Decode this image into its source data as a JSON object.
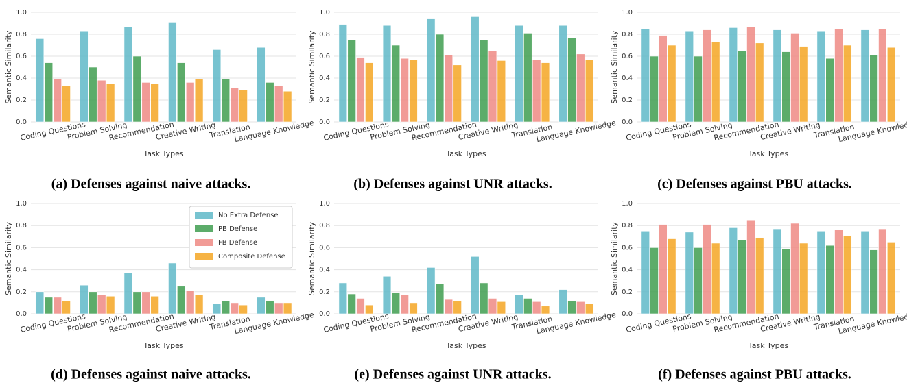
{
  "chart_data": [
    {
      "type": "bar",
      "title": "(a) Defenses against naive attacks.",
      "x_label": "Task Types",
      "y_label": "Semantic Similarity",
      "categories": [
        "Coding Questions",
        "Problem Solving",
        "Recommendation",
        "Creative Writing",
        "Translation",
        "Language Knowledge"
      ],
      "series": [
        {
          "color": "#5fb8c8",
          "values": [
            0.76,
            0.83,
            0.87,
            0.91,
            0.66,
            0.68
          ]
        },
        {
          "color": "#3f9e50",
          "values": [
            0.54,
            0.5,
            0.6,
            0.54,
            0.39,
            0.36
          ]
        },
        {
          "color": "#ef8a84",
          "values": [
            0.39,
            0.38,
            0.36,
            0.36,
            0.31,
            0.33
          ]
        },
        {
          "color": "#f5a623",
          "values": [
            0.33,
            0.35,
            0.35,
            0.39,
            0.29,
            0.28
          ]
        }
      ],
      "ylim": [
        0,
        1
      ],
      "yticks": [
        {
          "value": 0,
          "label": "0.0"
        },
        0.2,
        0.4,
        0.6,
        0.8,
        {
          "value": 1,
          "label": "1.0"
        }
      ],
      "grid": true
    },
    {
      "type": "bar",
      "title": "(b) Defenses against UNR attacks.",
      "x_label": "Task Types",
      "y_label": "Semantic Similarity",
      "categories": [
        "Coding Questions",
        "Problem Solving",
        "Recommendation",
        "Creative Writing",
        "Translation",
        "Language Knowledge"
      ],
      "series": [
        {
          "color": "#5fb8c8",
          "values": [
            0.89,
            0.88,
            0.94,
            0.96,
            0.88,
            0.88
          ]
        },
        {
          "color": "#3f9e50",
          "values": [
            0.75,
            0.7,
            0.8,
            0.75,
            0.81,
            0.77
          ]
        },
        {
          "color": "#ef8a84",
          "values": [
            0.59,
            0.58,
            0.61,
            0.65,
            0.57,
            0.62
          ]
        },
        {
          "color": "#f5a623",
          "values": [
            0.54,
            0.57,
            0.52,
            0.56,
            0.54,
            0.57
          ]
        }
      ],
      "ylim": [
        0,
        1
      ],
      "yticks": [
        {
          "value": 0,
          "label": "0.0"
        },
        0.2,
        0.4,
        0.6,
        0.8,
        {
          "value": 1,
          "label": "1.0"
        }
      ],
      "grid": true
    },
    {
      "type": "bar",
      "title": "(c) Defenses against PBU attacks.",
      "x_label": "Task Types",
      "y_label": "Semantic Similarity",
      "categories": [
        "Coding Questions",
        "Problem Solving",
        "Recommendation",
        "Creative Writing",
        "Translation",
        "Language Knowledge"
      ],
      "series": [
        {
          "color": "#5fb8c8",
          "values": [
            0.85,
            0.83,
            0.86,
            0.84,
            0.83,
            0.84
          ]
        },
        {
          "color": "#3f9e50",
          "values": [
            0.6,
            0.6,
            0.65,
            0.64,
            0.58,
            0.61
          ]
        },
        {
          "color": "#ef8a84",
          "values": [
            0.79,
            0.84,
            0.87,
            0.81,
            0.85,
            0.85
          ]
        },
        {
          "color": "#f5a623",
          "values": [
            0.7,
            0.73,
            0.72,
            0.69,
            0.7,
            0.68
          ]
        }
      ],
      "ylim": [
        0,
        1
      ],
      "yticks": [
        {
          "value": 0,
          "label": "0.0"
        },
        0.2,
        0.4,
        0.6,
        0.8,
        {
          "value": 1,
          "label": "1.0"
        }
      ],
      "grid": true
    },
    {
      "type": "bar",
      "title": "(d) Defenses against naive attacks.",
      "x_label": "Task Types",
      "y_label": "Semantic Similarity",
      "categories": [
        "Coding Questions",
        "Problem Solving",
        "Recommendation",
        "Creative Writing",
        "Translation",
        "Language Knowledge"
      ],
      "series": [
        {
          "name": "No Extra Defense",
          "color": "#5fb8c8",
          "values": [
            0.2,
            0.26,
            0.37,
            0.46,
            0.09,
            0.15
          ]
        },
        {
          "name": "PB Defense",
          "color": "#3f9e50",
          "values": [
            0.15,
            0.2,
            0.2,
            0.25,
            0.12,
            0.12
          ]
        },
        {
          "name": "FB Defense",
          "color": "#ef8a84",
          "values": [
            0.15,
            0.17,
            0.2,
            0.21,
            0.1,
            0.1
          ]
        },
        {
          "name": "Composite Defense",
          "color": "#f5a623",
          "values": [
            0.12,
            0.16,
            0.16,
            0.17,
            0.08,
            0.1
          ]
        }
      ],
      "ylim": [
        0,
        1
      ],
      "yticks": [
        {
          "value": 0,
          "label": "0.0"
        },
        0.2,
        0.4,
        0.6,
        0.8,
        {
          "value": 1,
          "label": "1.0"
        }
      ],
      "grid": true,
      "legend": "upper right"
    },
    {
      "type": "bar",
      "title": "(e) Defenses against UNR attacks.",
      "x_label": "Task Types",
      "y_label": "Semantic Similarity",
      "categories": [
        "Coding Questions",
        "Problem Solving",
        "Recommendation",
        "Creative Writing",
        "Translation",
        "Language Knowledge"
      ],
      "series": [
        {
          "color": "#5fb8c8",
          "values": [
            0.28,
            0.34,
            0.42,
            0.52,
            0.17,
            0.22
          ]
        },
        {
          "color": "#3f9e50",
          "values": [
            0.18,
            0.19,
            0.27,
            0.28,
            0.14,
            0.12
          ]
        },
        {
          "color": "#ef8a84",
          "values": [
            0.14,
            0.17,
            0.13,
            0.14,
            0.11,
            0.11
          ]
        },
        {
          "color": "#f5a623",
          "values": [
            0.08,
            0.1,
            0.12,
            0.11,
            0.07,
            0.09
          ]
        }
      ],
      "ylim": [
        0,
        1
      ],
      "yticks": [
        {
          "value": 0,
          "label": "0.0"
        },
        0.2,
        0.4,
        0.6,
        0.8,
        {
          "value": 1,
          "label": "1.0"
        }
      ],
      "grid": true
    },
    {
      "type": "bar",
      "title": "(f) Defenses against PBU attacks.",
      "x_label": "Task Types",
      "y_label": "Semantic Similarity",
      "categories": [
        "Coding Questions",
        "Problem Solving",
        "Recommendation",
        "Creative Writing",
        "Translation",
        "Language Knowledge"
      ],
      "series": [
        {
          "color": "#5fb8c8",
          "values": [
            0.75,
            0.74,
            0.78,
            0.77,
            0.75,
            0.75
          ]
        },
        {
          "color": "#3f9e50",
          "values": [
            0.6,
            0.6,
            0.67,
            0.59,
            0.62,
            0.58
          ]
        },
        {
          "color": "#ef8a84",
          "values": [
            0.81,
            0.81,
            0.85,
            0.82,
            0.76,
            0.77
          ]
        },
        {
          "color": "#f5a623",
          "values": [
            0.68,
            0.64,
            0.69,
            0.64,
            0.71,
            0.65
          ]
        }
      ],
      "ylim": [
        0,
        1
      ],
      "yticks": [
        {
          "value": 0,
          "label": "0.0"
        },
        0.2,
        0.4,
        0.6,
        0.8,
        {
          "value": 1,
          "label": "1.0"
        }
      ],
      "grid": true
    }
  ]
}
